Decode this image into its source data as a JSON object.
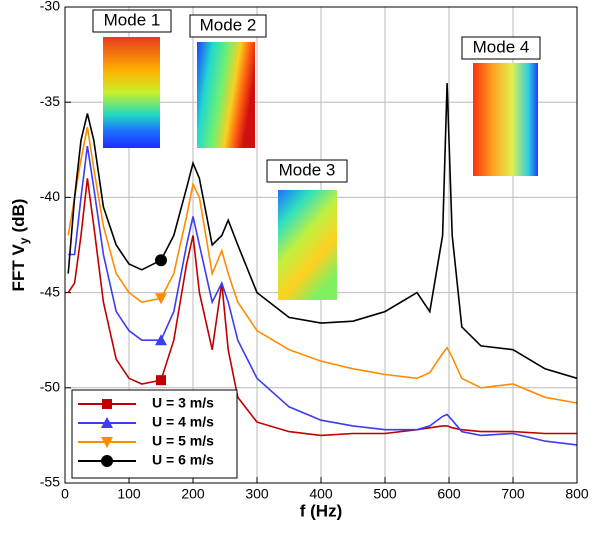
{
  "chart_data": {
    "type": "line",
    "xlabel": "f (Hz)",
    "ylabel": {
      "text": "FFT V",
      "subscript": "y",
      "unit": "(dB)"
    },
    "annotations": [
      "Mode 1",
      "Mode 2",
      "Mode 3",
      "Mode 4"
    ],
    "xlim": [
      0,
      800
    ],
    "xticks": [
      0,
      100,
      200,
      300,
      400,
      500,
      600,
      700,
      800
    ],
    "ylim": [
      -55,
      -30
    ],
    "yticks": [
      -55,
      -50,
      -45,
      -40,
      -35,
      -30
    ],
    "grid": true,
    "legend": "lower left",
    "x": [
      5,
      15,
      25,
      35,
      45,
      60,
      80,
      100,
      120,
      150,
      170,
      190,
      200,
      210,
      230,
      245,
      255,
      270,
      300,
      350,
      400,
      450,
      500,
      550,
      570,
      590,
      597,
      605,
      620,
      650,
      700,
      750,
      800
    ],
    "series": [
      {
        "name": "U = 3 m/s",
        "color": "#c00000",
        "marker": "square",
        "values": [
          -45,
          -44.5,
          -42,
          -39,
          -41.5,
          -45.5,
          -48.5,
          -49.5,
          -49.8,
          -49.6,
          -47.5,
          -43.5,
          -42,
          -45,
          -48,
          -44.5,
          -48,
          -50.5,
          -51.8,
          -52.3,
          -52.5,
          -52.4,
          -52.4,
          -52.2,
          -52.1,
          -52,
          -52,
          -52.1,
          -52.2,
          -52.3,
          -52.3,
          -52.4,
          -52.4
        ]
      },
      {
        "name": "U = 4 m/s",
        "color": "#3c3cf0",
        "marker": "triangle",
        "values": [
          -43,
          -43,
          -40,
          -37.3,
          -39.5,
          -43,
          -46,
          -47,
          -47.5,
          -47.5,
          -46,
          -42.5,
          -41,
          -42.5,
          -45.5,
          -44.5,
          -45.5,
          -47.5,
          -49.5,
          -51,
          -51.7,
          -52,
          -52.2,
          -52.2,
          -52,
          -51.5,
          -51.4,
          -51.7,
          -52.3,
          -52.5,
          -52.4,
          -52.8,
          -53
        ]
      },
      {
        "name": "U = 5 m/s",
        "color": "#ff8c00",
        "marker": "triangle-down",
        "values": [
          -42,
          -40,
          -38,
          -36.3,
          -38.5,
          -41.5,
          -44,
          -45,
          -45.5,
          -45.3,
          -44,
          -41,
          -39.3,
          -40,
          -44,
          -42.8,
          -44,
          -45.5,
          -47,
          -48,
          -48.6,
          -49,
          -49.3,
          -49.5,
          -49.2,
          -48.2,
          -47.9,
          -48.4,
          -49.5,
          -50,
          -49.8,
          -50.5,
          -50.8
        ]
      },
      {
        "name": "U = 6 m/s",
        "color": "#000000",
        "marker": "circle",
        "values": [
          -44,
          -40,
          -37,
          -35.6,
          -37,
          -40.5,
          -42.5,
          -43.5,
          -43.8,
          -43.3,
          -42,
          -39.5,
          -38.2,
          -39,
          -42.5,
          -42,
          -41.2,
          -42.5,
          -45,
          -46.3,
          -46.6,
          -46.5,
          -46,
          -45,
          -46,
          -42,
          -34,
          -42,
          -46.8,
          -47.8,
          -48,
          -49,
          -49.5
        ]
      }
    ]
  }
}
